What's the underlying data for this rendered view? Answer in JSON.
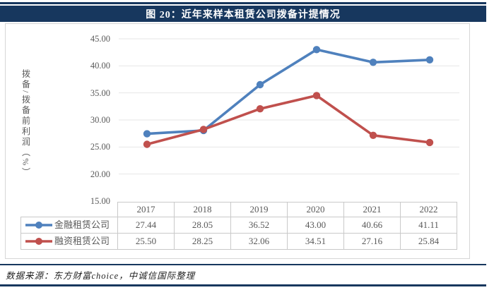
{
  "figure": {
    "title": "图 20：近年来样本租赁公司拨备计提情况"
  },
  "source_note": "数据来源：东方财富choice，中诚信国际整理",
  "colors": {
    "banner_navy": "#17375E",
    "series_blue": "#4F81BD",
    "series_red": "#C0504D",
    "gridline": "#E6E6E6",
    "axis_text": "#595959",
    "table_border": "#C9C9C9"
  },
  "chart_data": {
    "type": "line",
    "title": "图 20：近年来样本租赁公司拨备计提情况",
    "xlabel": "",
    "ylabel": "拨备/拨备前利润（%）",
    "categories": [
      "2017",
      "2018",
      "2019",
      "2020",
      "2021",
      "2022"
    ],
    "series": [
      {
        "name": "金融租赁公司",
        "color": "#4F81BD",
        "values": [
          27.44,
          28.05,
          36.52,
          43.0,
          40.66,
          41.11
        ],
        "labels": [
          "27.44",
          "28.05",
          "36.52",
          "43.00",
          "40.66",
          "41.11"
        ]
      },
      {
        "name": "融资租赁公司",
        "color": "#C0504D",
        "values": [
          25.5,
          28.25,
          32.06,
          34.51,
          27.16,
          25.84
        ],
        "labels": [
          "25.50",
          "28.25",
          "32.06",
          "34.51",
          "27.16",
          "25.84"
        ]
      }
    ],
    "ylim": [
      15,
      45
    ],
    "y_tick_step": 5,
    "y_ticks": [
      "45.00",
      "40.00",
      "35.00",
      "30.00",
      "25.00",
      "20.00",
      "15.00"
    ],
    "grid": true,
    "marker": "circle",
    "legend_position": "table-left",
    "data_table_shown": true
  }
}
